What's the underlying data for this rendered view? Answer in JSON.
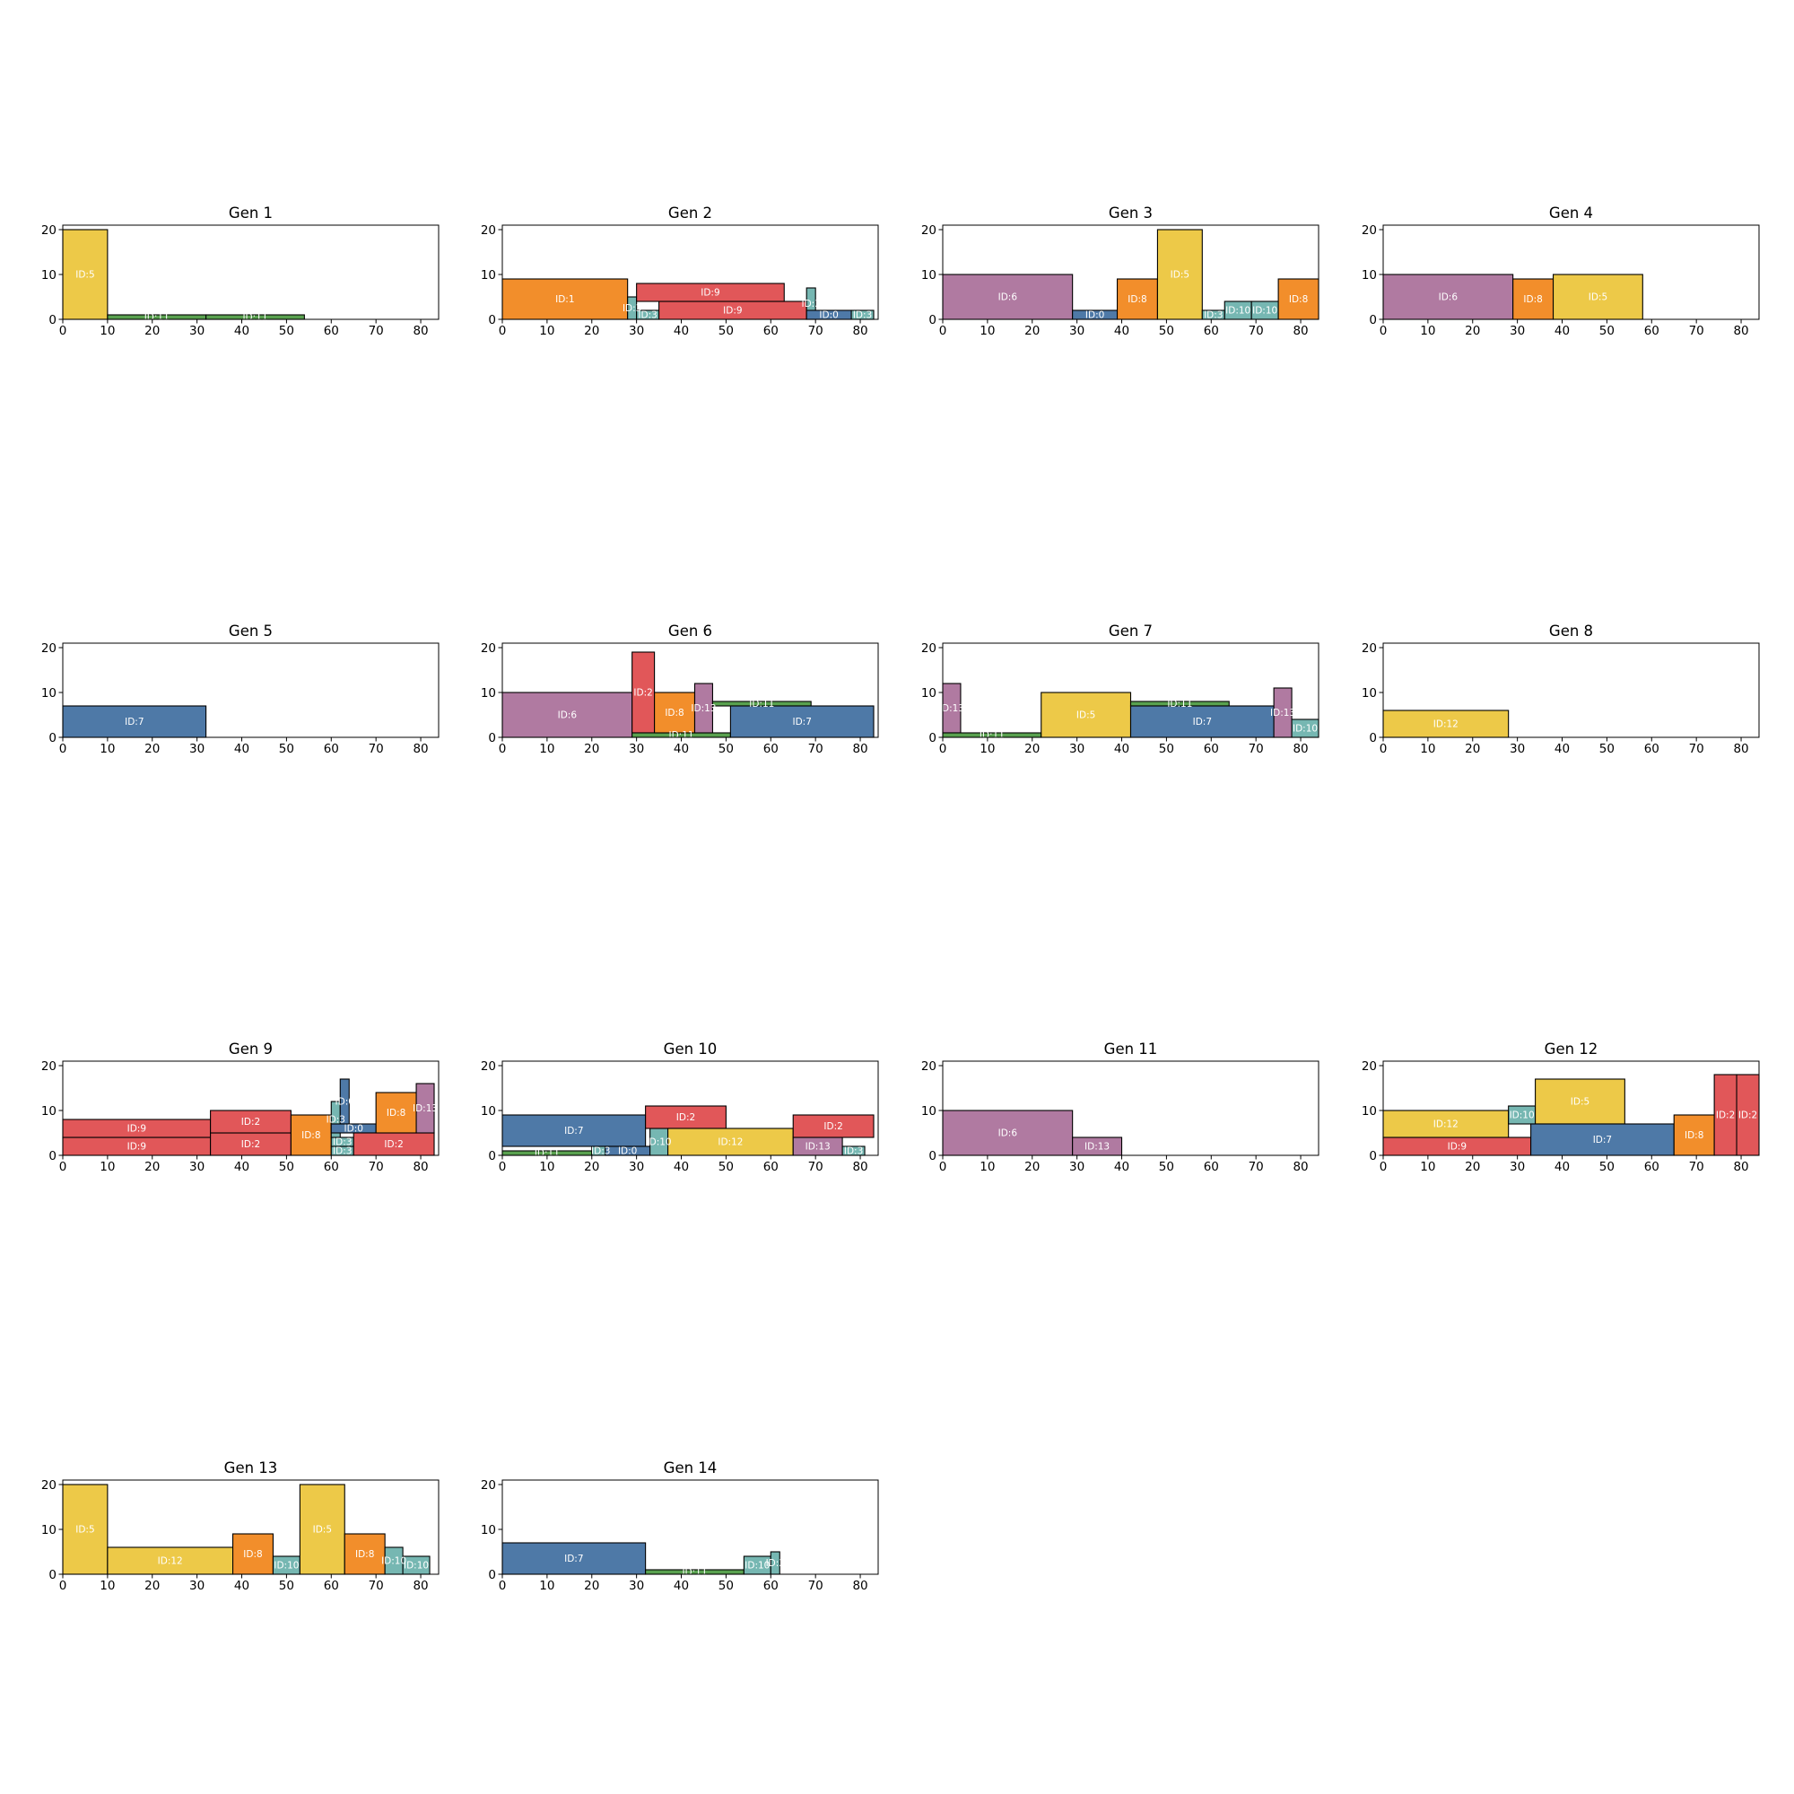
{
  "colors": {
    "0": "#4e79a7",
    "1": "#f28e2b",
    "2": "#e15759",
    "3": "#76b7b2",
    "5": "#edc948",
    "6": "#b07aa1",
    "7": "#4e79a7",
    "8": "#f28e2b",
    "9": "#e15759",
    "10": "#76b7b2",
    "11": "#59a14f",
    "12": "#edc948",
    "13": "#b07aa1"
  },
  "chart_data": [
    {
      "type": "bar",
      "title": "Gen 1",
      "xlim": [
        0,
        84
      ],
      "ylim": [
        0,
        21
      ],
      "xticks": [
        0,
        10,
        20,
        30,
        40,
        50,
        60,
        70,
        80
      ],
      "yticks": [
        0,
        10,
        20
      ],
      "rects": [
        {
          "id": 5,
          "label": "ID:5",
          "x": 0,
          "w": 10,
          "y": 0,
          "h": 20
        },
        {
          "id": 11,
          "label": "ID:11",
          "x": 10,
          "w": 22,
          "y": 0,
          "h": 1
        },
        {
          "id": 11,
          "label": "ID:11",
          "x": 32,
          "w": 22,
          "y": 0,
          "h": 1
        }
      ]
    },
    {
      "type": "bar",
      "title": "Gen 2",
      "xlim": [
        0,
        84
      ],
      "ylim": [
        0,
        21
      ],
      "xticks": [
        0,
        10,
        20,
        30,
        40,
        50,
        60,
        70,
        80
      ],
      "yticks": [
        0,
        10,
        20
      ],
      "rects": [
        {
          "id": 1,
          "label": "ID:1",
          "x": 0,
          "w": 28,
          "y": 0,
          "h": 9
        },
        {
          "id": 3,
          "label": "ID:3",
          "x": 28,
          "w": 2,
          "y": 0,
          "h": 5
        },
        {
          "id": 3,
          "label": "ID:3",
          "x": 30,
          "w": 5,
          "y": 0,
          "h": 2
        },
        {
          "id": 9,
          "label": "ID:9",
          "x": 35,
          "w": 33,
          "y": 0,
          "h": 4
        },
        {
          "id": 9,
          "label": "ID:9",
          "x": 30,
          "w": 33,
          "y": 4,
          "h": 4
        },
        {
          "id": 3,
          "label": "ID:3",
          "x": 68,
          "w": 2,
          "y": 0,
          "h": 7
        },
        {
          "id": 0,
          "label": "ID:0",
          "x": 68,
          "w": 10,
          "y": 0,
          "h": 2
        },
        {
          "id": 3,
          "label": "ID:3",
          "x": 78,
          "w": 5,
          "y": 0,
          "h": 2
        }
      ]
    },
    {
      "type": "bar",
      "title": "Gen 3",
      "xlim": [
        0,
        84
      ],
      "ylim": [
        0,
        21
      ],
      "xticks": [
        0,
        10,
        20,
        30,
        40,
        50,
        60,
        70,
        80
      ],
      "yticks": [
        0,
        10,
        20
      ],
      "rects": [
        {
          "id": 6,
          "label": "ID:6",
          "x": 0,
          "w": 29,
          "y": 0,
          "h": 10
        },
        {
          "id": 0,
          "label": "ID:0",
          "x": 29,
          "w": 10,
          "y": 0,
          "h": 2
        },
        {
          "id": 8,
          "label": "ID:8",
          "x": 39,
          "w": 9,
          "y": 0,
          "h": 9
        },
        {
          "id": 5,
          "label": "ID:5",
          "x": 48,
          "w": 10,
          "y": 0,
          "h": 20
        },
        {
          "id": 3,
          "label": "ID:3",
          "x": 58,
          "w": 5,
          "y": 0,
          "h": 2
        },
        {
          "id": 10,
          "label": "ID:10",
          "x": 63,
          "w": 6,
          "y": 0,
          "h": 4
        },
        {
          "id": 10,
          "label": "ID:10",
          "x": 69,
          "w": 6,
          "y": 0,
          "h": 4
        },
        {
          "id": 8,
          "label": "ID:8",
          "x": 75,
          "w": 9,
          "y": 0,
          "h": 9
        }
      ]
    },
    {
      "type": "bar",
      "title": "Gen 4",
      "xlim": [
        0,
        84
      ],
      "ylim": [
        0,
        21
      ],
      "xticks": [
        0,
        10,
        20,
        30,
        40,
        50,
        60,
        70,
        80
      ],
      "yticks": [
        0,
        10,
        20
      ],
      "rects": [
        {
          "id": 6,
          "label": "ID:6",
          "x": 0,
          "w": 29,
          "y": 0,
          "h": 10
        },
        {
          "id": 8,
          "label": "ID:8",
          "x": 29,
          "w": 9,
          "y": 0,
          "h": 9
        },
        {
          "id": 5,
          "label": "ID:5",
          "x": 38,
          "w": 20,
          "y": 0,
          "h": 10
        }
      ]
    },
    {
      "type": "bar",
      "title": "Gen 5",
      "xlim": [
        0,
        84
      ],
      "ylim": [
        0,
        21
      ],
      "xticks": [
        0,
        10,
        20,
        30,
        40,
        50,
        60,
        70,
        80
      ],
      "yticks": [
        0,
        10,
        20
      ],
      "rects": [
        {
          "id": 7,
          "label": "ID:7",
          "x": 0,
          "w": 32,
          "y": 0,
          "h": 7
        }
      ]
    },
    {
      "type": "bar",
      "title": "Gen 6",
      "xlim": [
        0,
        84
      ],
      "ylim": [
        0,
        21
      ],
      "xticks": [
        0,
        10,
        20,
        30,
        40,
        50,
        60,
        70,
        80
      ],
      "yticks": [
        0,
        10,
        20
      ],
      "rects": [
        {
          "id": 6,
          "label": "ID:6",
          "x": 0,
          "w": 29,
          "y": 0,
          "h": 10
        },
        {
          "id": 2,
          "label": "ID:2",
          "x": 29,
          "w": 5,
          "y": 1,
          "h": 18
        },
        {
          "id": 11,
          "label": "ID:11",
          "x": 29,
          "w": 22,
          "y": 0,
          "h": 1
        },
        {
          "id": 8,
          "label": "ID:8",
          "x": 34,
          "w": 9,
          "y": 1,
          "h": 9
        },
        {
          "id": 13,
          "label": "ID:13",
          "x": 43,
          "w": 4,
          "y": 1,
          "h": 11
        },
        {
          "id": 11,
          "label": "ID:11",
          "x": 47,
          "w": 22,
          "y": 7,
          "h": 1
        },
        {
          "id": 7,
          "label": "ID:7",
          "x": 51,
          "w": 32,
          "y": 0,
          "h": 7
        }
      ]
    },
    {
      "type": "bar",
      "title": "Gen 7",
      "xlim": [
        0,
        84
      ],
      "ylim": [
        0,
        21
      ],
      "xticks": [
        0,
        10,
        20,
        30,
        40,
        50,
        60,
        70,
        80
      ],
      "yticks": [
        0,
        10,
        20
      ],
      "rects": [
        {
          "id": 13,
          "label": "ID:13",
          "x": 0,
          "w": 4,
          "y": 1,
          "h": 11
        },
        {
          "id": 11,
          "label": "ID:11",
          "x": 0,
          "w": 22,
          "y": 0,
          "h": 1
        },
        {
          "id": 5,
          "label": "ID:5",
          "x": 22,
          "w": 20,
          "y": 0,
          "h": 10
        },
        {
          "id": 11,
          "label": "ID:11",
          "x": 42,
          "w": 22,
          "y": 7,
          "h": 1
        },
        {
          "id": 7,
          "label": "ID:7",
          "x": 42,
          "w": 32,
          "y": 0,
          "h": 7
        },
        {
          "id": 13,
          "label": "ID:13",
          "x": 74,
          "w": 4,
          "y": 0,
          "h": 11
        },
        {
          "id": 10,
          "label": "ID:10",
          "x": 78,
          "w": 6,
          "y": 0,
          "h": 4
        }
      ]
    },
    {
      "type": "bar",
      "title": "Gen 8",
      "xlim": [
        0,
        84
      ],
      "ylim": [
        0,
        21
      ],
      "xticks": [
        0,
        10,
        20,
        30,
        40,
        50,
        60,
        70,
        80
      ],
      "yticks": [
        0,
        10,
        20
      ],
      "rects": [
        {
          "id": 12,
          "label": "ID:12",
          "x": 0,
          "w": 28,
          "y": 0,
          "h": 6
        }
      ]
    },
    {
      "type": "bar",
      "title": "Gen 9",
      "xlim": [
        0,
        84
      ],
      "ylim": [
        0,
        21
      ],
      "xticks": [
        0,
        10,
        20,
        30,
        40,
        50,
        60,
        70,
        80
      ],
      "yticks": [
        0,
        10,
        20
      ],
      "rects": [
        {
          "id": 9,
          "label": "ID:9",
          "x": 0,
          "w": 33,
          "y": 0,
          "h": 4
        },
        {
          "id": 9,
          "label": "ID:9",
          "x": 0,
          "w": 33,
          "y": 4,
          "h": 4
        },
        {
          "id": 2,
          "label": "ID:2",
          "x": 33,
          "w": 18,
          "y": 0,
          "h": 5
        },
        {
          "id": 2,
          "label": "ID:2",
          "x": 33,
          "w": 18,
          "y": 5,
          "h": 5
        },
        {
          "id": 8,
          "label": "ID:8",
          "x": 51,
          "w": 9,
          "y": 0,
          "h": 9
        },
        {
          "id": 3,
          "label": "ID:3",
          "x": 60,
          "w": 5,
          "y": 0,
          "h": 2
        },
        {
          "id": 3,
          "label": "ID:3",
          "x": 60,
          "w": 5,
          "y": 2,
          "h": 2
        },
        {
          "id": 3,
          "label": "ID:3",
          "x": 60,
          "w": 2,
          "y": 4,
          "h": 8
        },
        {
          "id": 0,
          "label": "ID:0",
          "x": 62,
          "w": 2,
          "y": 7,
          "h": 10
        },
        {
          "id": 0,
          "label": "ID:0",
          "x": 60,
          "w": 10,
          "y": 5,
          "h": 2
        },
        {
          "id": 2,
          "label": "ID:2",
          "x": 65,
          "w": 18,
          "y": 0,
          "h": 5
        },
        {
          "id": 8,
          "label": "ID:8",
          "x": 70,
          "w": 9,
          "y": 5,
          "h": 9
        },
        {
          "id": 13,
          "label": "ID:13",
          "x": 79,
          "w": 4,
          "y": 5,
          "h": 11
        }
      ]
    },
    {
      "type": "bar",
      "title": "Gen 10",
      "xlim": [
        0,
        84
      ],
      "ylim": [
        0,
        21
      ],
      "xticks": [
        0,
        10,
        20,
        30,
        40,
        50,
        60,
        70,
        80
      ],
      "yticks": [
        0,
        10,
        20
      ],
      "rects": [
        {
          "id": 11,
          "label": "ID:11",
          "x": 0,
          "w": 20,
          "y": 0,
          "h": 1
        },
        {
          "id": 7,
          "label": "ID:7",
          "x": 0,
          "w": 32,
          "y": 2,
          "h": 7
        },
        {
          "id": 3,
          "label": "ID:3",
          "x": 20,
          "w": 4,
          "y": 0,
          "h": 2
        },
        {
          "id": 0,
          "label": "ID:0",
          "x": 23,
          "w": 10,
          "y": 0,
          "h": 2
        },
        {
          "id": 10,
          "label": "ID:10",
          "x": 33,
          "w": 4,
          "y": 0,
          "h": 6
        },
        {
          "id": 2,
          "label": "ID:2",
          "x": 32,
          "w": 18,
          "y": 6,
          "h": 5
        },
        {
          "id": 12,
          "label": "ID:12",
          "x": 37,
          "w": 28,
          "y": 0,
          "h": 6
        },
        {
          "id": 13,
          "label": "ID:13",
          "x": 65,
          "w": 11,
          "y": 0,
          "h": 4
        },
        {
          "id": 2,
          "label": "ID:2",
          "x": 65,
          "w": 18,
          "y": 4,
          "h": 5
        },
        {
          "id": 3,
          "label": "ID:3",
          "x": 76,
          "w": 5,
          "y": 0,
          "h": 2
        }
      ]
    },
    {
      "type": "bar",
      "title": "Gen 11",
      "xlim": [
        0,
        84
      ],
      "ylim": [
        0,
        21
      ],
      "xticks": [
        0,
        10,
        20,
        30,
        40,
        50,
        60,
        70,
        80
      ],
      "yticks": [
        0,
        10,
        20
      ],
      "rects": [
        {
          "id": 6,
          "label": "ID:6",
          "x": 0,
          "w": 29,
          "y": 0,
          "h": 10
        },
        {
          "id": 13,
          "label": "ID:13",
          "x": 29,
          "w": 11,
          "y": 0,
          "h": 4
        }
      ]
    },
    {
      "type": "bar",
      "title": "Gen 12",
      "xlim": [
        0,
        84
      ],
      "ylim": [
        0,
        21
      ],
      "xticks": [
        0,
        10,
        20,
        30,
        40,
        50,
        60,
        70,
        80
      ],
      "yticks": [
        0,
        10,
        20
      ],
      "rects": [
        {
          "id": 9,
          "label": "ID:9",
          "x": 0,
          "w": 33,
          "y": 0,
          "h": 4
        },
        {
          "id": 12,
          "label": "ID:12",
          "x": 0,
          "w": 28,
          "y": 4,
          "h": 6
        },
        {
          "id": 10,
          "label": "ID:10",
          "x": 28,
          "w": 6,
          "y": 7,
          "h": 4
        },
        {
          "id": 5,
          "label": "ID:5",
          "x": 34,
          "w": 20,
          "y": 7,
          "h": 10
        },
        {
          "id": 7,
          "label": "ID:7",
          "x": 33,
          "w": 32,
          "y": 0,
          "h": 7
        },
        {
          "id": 8,
          "label": "ID:8",
          "x": 65,
          "w": 9,
          "y": 0,
          "h": 9
        },
        {
          "id": 2,
          "label": "ID:2",
          "x": 74,
          "w": 5,
          "y": 0,
          "h": 18
        },
        {
          "id": 2,
          "label": "ID:2",
          "x": 79,
          "w": 5,
          "y": 0,
          "h": 18
        }
      ]
    },
    {
      "type": "bar",
      "title": "Gen 13",
      "xlim": [
        0,
        84
      ],
      "ylim": [
        0,
        21
      ],
      "xticks": [
        0,
        10,
        20,
        30,
        40,
        50,
        60,
        70,
        80
      ],
      "yticks": [
        0,
        10,
        20
      ],
      "rects": [
        {
          "id": 5,
          "label": "ID:5",
          "x": 0,
          "w": 10,
          "y": 0,
          "h": 20
        },
        {
          "id": 12,
          "label": "ID:12",
          "x": 10,
          "w": 28,
          "y": 0,
          "h": 6
        },
        {
          "id": 8,
          "label": "ID:8",
          "x": 38,
          "w": 9,
          "y": 0,
          "h": 9
        },
        {
          "id": 10,
          "label": "ID:10",
          "x": 47,
          "w": 6,
          "y": 0,
          "h": 4
        },
        {
          "id": 5,
          "label": "ID:5",
          "x": 53,
          "w": 10,
          "y": 0,
          "h": 20
        },
        {
          "id": 8,
          "label": "ID:8",
          "x": 63,
          "w": 9,
          "y": 0,
          "h": 9
        },
        {
          "id": 10,
          "label": "ID:10",
          "x": 72,
          "w": 4,
          "y": 0,
          "h": 6
        },
        {
          "id": 10,
          "label": "ID:10",
          "x": 76,
          "w": 6,
          "y": 0,
          "h": 4
        }
      ]
    },
    {
      "type": "bar",
      "title": "Gen 14",
      "xlim": [
        0,
        84
      ],
      "ylim": [
        0,
        21
      ],
      "xticks": [
        0,
        10,
        20,
        30,
        40,
        50,
        60,
        70,
        80
      ],
      "yticks": [
        0,
        10,
        20
      ],
      "rects": [
        {
          "id": 7,
          "label": "ID:7",
          "x": 0,
          "w": 32,
          "y": 0,
          "h": 7
        },
        {
          "id": 11,
          "label": "ID:11",
          "x": 32,
          "w": 22,
          "y": 0,
          "h": 1
        },
        {
          "id": 10,
          "label": "ID:10",
          "x": 54,
          "w": 6,
          "y": 0,
          "h": 4
        },
        {
          "id": 3,
          "label": "ID:3",
          "x": 60,
          "w": 2,
          "y": 0,
          "h": 5
        }
      ]
    }
  ]
}
